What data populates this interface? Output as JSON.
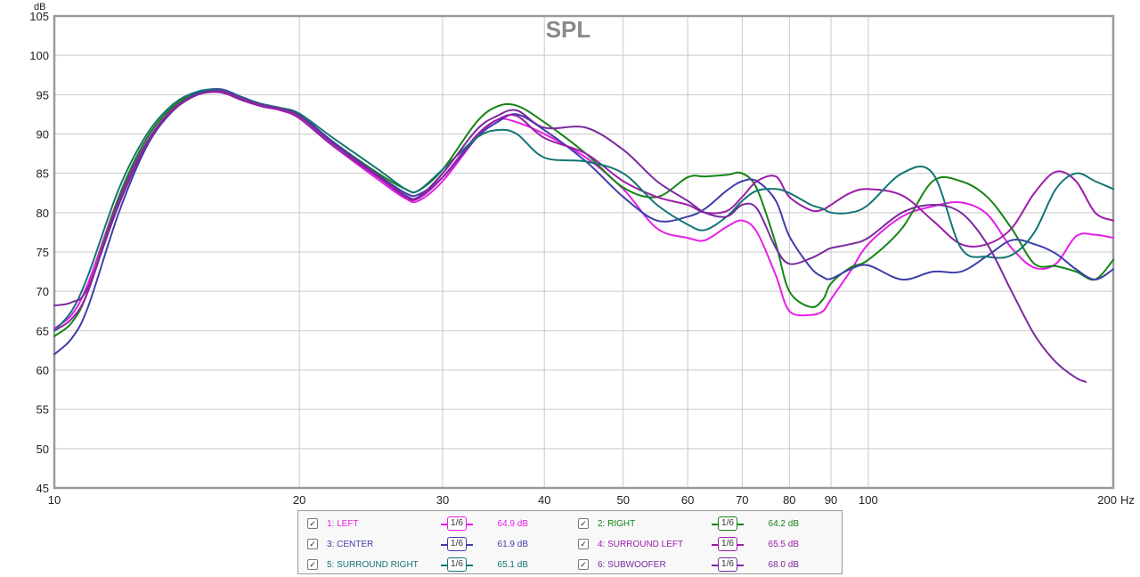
{
  "chart_data": {
    "type": "line",
    "title": "SPL",
    "ylabel": "dB",
    "xlabel_unit": "Hz",
    "xscale": "log",
    "xlim": [
      10,
      200
    ],
    "ylim": [
      45,
      105
    ],
    "grid": true,
    "legend_position": "bottom",
    "y_ticks": [
      "45",
      "50",
      "55",
      "60",
      "65",
      "70",
      "75",
      "80",
      "85",
      "90",
      "95",
      "100",
      "105"
    ],
    "x_ticks": [
      {
        "v": 10,
        "label": "10"
      },
      {
        "v": 20,
        "label": "20"
      },
      {
        "v": 30,
        "label": "30"
      },
      {
        "v": 40,
        "label": "40"
      },
      {
        "v": 50,
        "label": "50"
      },
      {
        "v": 60,
        "label": "60"
      },
      {
        "v": 70,
        "label": "70"
      },
      {
        "v": 80,
        "label": "80"
      },
      {
        "v": 90,
        "label": "90"
      },
      {
        "v": 100,
        "label": "100"
      },
      {
        "v": 200,
        "label": "200"
      }
    ],
    "series": [
      {
        "name": "1: LEFT",
        "color": "#e61fe6",
        "smoothing": "1/6",
        "level": "64.9 dB",
        "x": [
          10,
          10.5,
          11,
          12,
          13,
          14,
          15,
          16,
          17,
          18,
          19,
          20,
          22,
          25,
          27,
          28,
          30,
          33,
          35,
          37,
          40,
          45,
          50,
          55,
          60,
          63,
          67,
          70,
          73,
          77,
          80,
          85,
          88,
          90,
          95,
          100,
          110,
          120,
          130,
          140,
          150,
          160,
          170,
          180,
          190,
          200
        ],
        "y": [
          65.3,
          67,
          71,
          82,
          89.5,
          93.5,
          95.2,
          95.4,
          94.5,
          93.6,
          93,
          92,
          88.5,
          84.2,
          81.8,
          81.5,
          84,
          89.5,
          91.8,
          91.5,
          90,
          87,
          83,
          78,
          76.8,
          76.5,
          78.2,
          79,
          77.5,
          72,
          67.5,
          67,
          67.5,
          69,
          72.5,
          76,
          79.5,
          80.8,
          81.3,
          79.8,
          75.5,
          73,
          73.5,
          77,
          77.2,
          76.8
        ]
      },
      {
        "name": "2: RIGHT",
        "color": "#148414",
        "smoothing": "1/6",
        "level": "64.2 dB",
        "x": [
          10,
          10.5,
          11,
          12,
          13,
          14,
          15,
          16,
          17,
          18,
          19,
          20,
          22,
          25,
          27,
          28,
          30,
          33,
          35,
          37,
          40,
          45,
          50,
          55,
          60,
          63,
          67,
          70,
          73,
          77,
          80,
          85,
          88,
          90,
          95,
          100,
          110,
          120,
          130,
          140,
          150,
          160,
          170,
          180,
          190,
          200
        ],
        "y": [
          64.3,
          66,
          70,
          82,
          89.5,
          93.5,
          95.2,
          95.6,
          94.5,
          93.7,
          93.2,
          92.3,
          89,
          85,
          83,
          82.8,
          85.5,
          91.5,
          93.5,
          93.6,
          91.5,
          87.5,
          83.2,
          82,
          84.5,
          84.6,
          84.8,
          85,
          83,
          76,
          70,
          68,
          69,
          71,
          73,
          74,
          78,
          84,
          84,
          82,
          78,
          73.5,
          73.2,
          72.5,
          71.5,
          74
        ]
      },
      {
        "name": "3: CENTER",
        "color": "#3e3ea8",
        "smoothing": "1/6",
        "level": "61.9 dB",
        "x": [
          10,
          10.5,
          11,
          12,
          13,
          14,
          15,
          16,
          17,
          18,
          19,
          20,
          22,
          25,
          27,
          28,
          30,
          33,
          35,
          37,
          40,
          45,
          50,
          55,
          60,
          63,
          67,
          70,
          73,
          77,
          80,
          85,
          88,
          90,
          95,
          100,
          110,
          120,
          130,
          140,
          150,
          160,
          170,
          180,
          190,
          200
        ],
        "y": [
          62,
          64,
          68,
          80,
          88.5,
          93,
          95.2,
          95.7,
          94.7,
          93.8,
          93.3,
          92.5,
          89,
          84.8,
          82.5,
          82.3,
          84.5,
          89.5,
          91.5,
          92.5,
          90.5,
          86.5,
          82,
          79,
          79.5,
          80.5,
          82.8,
          84,
          84,
          81.5,
          77,
          73,
          71.8,
          71.6,
          72.8,
          73.3,
          71.5,
          72.5,
          72.5,
          74.5,
          76.5,
          76,
          74.8,
          72.8,
          71.5,
          72.8
        ]
      },
      {
        "name": "4: SURROUND LEFT",
        "color": "#9a1ea8",
        "smoothing": "1/6",
        "level": "65.5 dB",
        "x": [
          10,
          10.5,
          11,
          12,
          13,
          14,
          15,
          16,
          17,
          18,
          19,
          20,
          22,
          25,
          27,
          28,
          30,
          33,
          35,
          37,
          40,
          45,
          50,
          55,
          60,
          63,
          67,
          70,
          73,
          77,
          80,
          85,
          88,
          90,
          95,
          100,
          110,
          120,
          130,
          140,
          150,
          160,
          170,
          180,
          190,
          200
        ],
        "y": [
          65,
          66.5,
          70,
          81.5,
          89,
          93.2,
          95,
          95.3,
          94.3,
          93.5,
          93,
          92,
          88.5,
          84.5,
          82,
          81.8,
          84.5,
          89.8,
          91.8,
          92.3,
          89.5,
          87.5,
          84,
          82,
          81,
          80,
          80.2,
          82,
          84,
          84.6,
          82,
          80.3,
          80.4,
          81,
          82.5,
          83,
          82.2,
          79,
          76,
          76,
          78,
          82.5,
          85.2,
          84,
          80,
          79
        ]
      },
      {
        "name": "5: SURROUND RIGHT",
        "color": "#127575",
        "smoothing": "1/6",
        "level": "65.1 dB",
        "x": [
          10,
          10.5,
          11,
          12,
          13,
          14,
          15,
          16,
          17,
          18,
          19,
          20,
          22,
          25,
          27,
          28,
          30,
          33,
          35,
          37,
          40,
          45,
          50,
          55,
          60,
          63,
          67,
          70,
          73,
          77,
          80,
          85,
          88,
          90,
          95,
          100,
          110,
          120,
          130,
          140,
          150,
          160,
          170,
          180,
          190,
          200
        ],
        "y": [
          65,
          67.5,
          72,
          83,
          90,
          93.8,
          95.4,
          95.6,
          94.6,
          93.8,
          93.3,
          92.6,
          89.5,
          85.5,
          83,
          82.8,
          85.5,
          89.5,
          90.5,
          90,
          87,
          86.5,
          85,
          81,
          78.5,
          77.8,
          79.5,
          81.5,
          82.8,
          83,
          82.5,
          81,
          80.5,
          80,
          80,
          81,
          85,
          85,
          75.5,
          74.4,
          74.6,
          77.5,
          83,
          85,
          84,
          83
        ]
      },
      {
        "name": "6: SUBWOOFER",
        "color": "#7a2a9e",
        "smoothing": "1/6",
        "level": "68.0 dB",
        "x": [
          10,
          10.5,
          11,
          12,
          13,
          14,
          15,
          16,
          17,
          18,
          19,
          20,
          22,
          25,
          27,
          28,
          30,
          33,
          35,
          37,
          40,
          45,
          50,
          55,
          60,
          63,
          67,
          70,
          73,
          77,
          80,
          85,
          88,
          90,
          95,
          100,
          110,
          120,
          130,
          140,
          150,
          160,
          170,
          180,
          185
        ],
        "y": [
          68.2,
          68.6,
          70.5,
          81,
          88.8,
          93,
          95,
          95.5,
          94.5,
          93.7,
          93.2,
          92.3,
          88.8,
          84.7,
          82.2,
          82,
          85,
          90.5,
          92.3,
          93,
          90.8,
          90.8,
          88,
          84,
          81.5,
          80,
          79.5,
          81,
          80.5,
          75.5,
          73.5,
          74.2,
          75,
          75.5,
          76,
          76.8,
          80,
          81,
          80,
          76,
          70,
          64.5,
          61,
          59,
          58.5
        ]
      }
    ]
  }
}
